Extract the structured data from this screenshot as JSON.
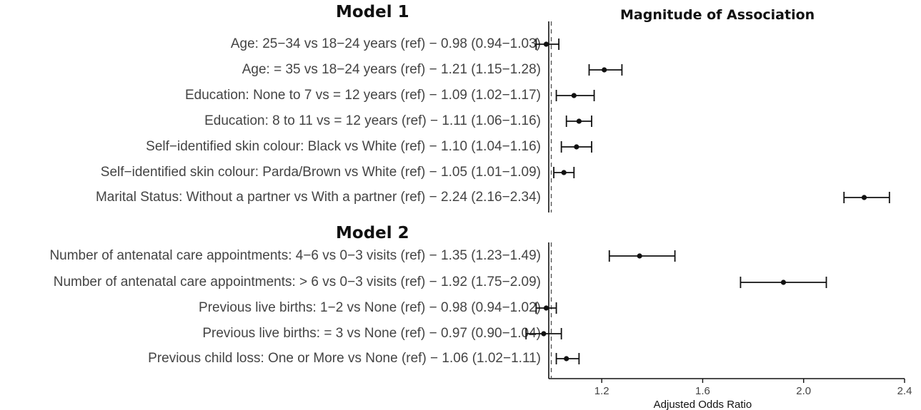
{
  "chart_data": {
    "type": "forest",
    "title": "Magnitude of Association",
    "xlabel": "Adjusted Odds Ratio",
    "xlim": [
      0.99,
      2.4
    ],
    "xticks": [
      1.2,
      1.6,
      2.0,
      2.4
    ],
    "tick_labels": [
      "1.2",
      "1.6",
      "2.0",
      "2.4"
    ],
    "reference_line": 1.0,
    "groups": [
      {
        "name": "Model 1",
        "rows": [
          {
            "label": "Age: 25−34 vs 18−24 years (ref) − 0.98 (0.94−1.03)",
            "or": 0.98,
            "lo": 0.94,
            "hi": 1.03
          },
          {
            "label": "Age: = 35 vs 18−24 years (ref) − 1.21 (1.15−1.28)",
            "or": 1.21,
            "lo": 1.15,
            "hi": 1.28
          },
          {
            "label": "Education: None to 7 vs =  12 years (ref) − 1.09 (1.02−1.17)",
            "or": 1.09,
            "lo": 1.02,
            "hi": 1.17
          },
          {
            "label": "Education: 8 to 11 vs =  12 years (ref) − 1.11 (1.06−1.16)",
            "or": 1.11,
            "lo": 1.06,
            "hi": 1.16
          },
          {
            "label": "Self−identified skin colour: Black vs White (ref) − 1.10 (1.04−1.16)",
            "or": 1.1,
            "lo": 1.04,
            "hi": 1.16
          },
          {
            "label": "Self−identified skin colour: Parda/Brown vs White (ref) − 1.05 (1.01−1.09)",
            "or": 1.05,
            "lo": 1.01,
            "hi": 1.09
          },
          {
            "label": "Marital Status: Without a partner vs With a partner (ref)  − 2.24 (2.16−2.34)",
            "or": 2.24,
            "lo": 2.16,
            "hi": 2.34
          }
        ]
      },
      {
        "name": "Model 2",
        "rows": [
          {
            "label": "Number of antenatal care appointments: 4−6 vs 0−3 visits (ref) − 1.35 (1.23−1.49)",
            "or": 1.35,
            "lo": 1.23,
            "hi": 1.49
          },
          {
            "label": "Number of antenatal care appointments: > 6 vs 0−3 visits (ref) − 1.92 (1.75−2.09)",
            "or": 1.92,
            "lo": 1.75,
            "hi": 2.09
          },
          {
            "label": "Previous live births: 1−2 vs None (ref) − 0.98 (0.94−1.02)",
            "or": 0.98,
            "lo": 0.94,
            "hi": 1.02
          },
          {
            "label": "Previous live births: =  3 vs None (ref) − 0.97 (0.90−1.04)",
            "or": 0.97,
            "lo": 0.9,
            "hi": 1.04
          },
          {
            "label": "Previous child loss: One or More vs None (ref) − 1.06 (1.02−1.11)",
            "or": 1.06,
            "lo": 1.02,
            "hi": 1.11
          }
        ]
      }
    ]
  },
  "colors": {
    "marker": "#111111",
    "axis": "#111111",
    "reference_line": "#555555",
    "label_text": "#444444"
  }
}
